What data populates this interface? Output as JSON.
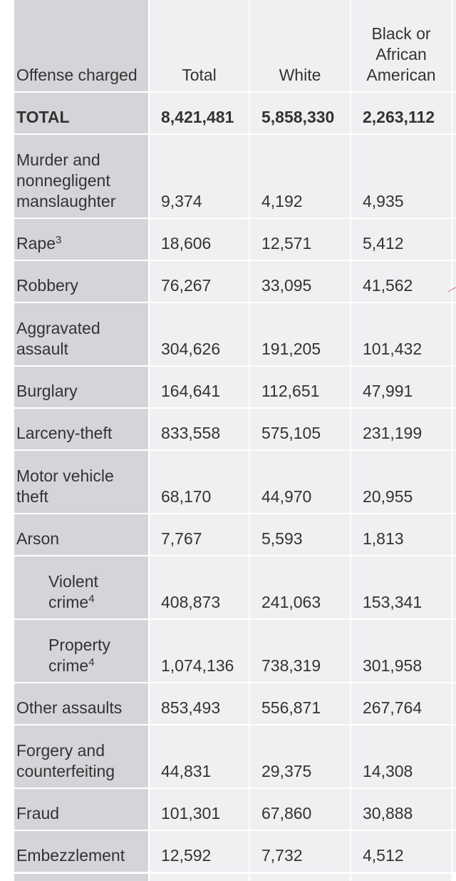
{
  "table": {
    "headers": {
      "offense": "Offense charged",
      "total": "Total",
      "white": "White",
      "black": "Black or African American"
    },
    "rows": [
      {
        "offense": "TOTAL",
        "sup": "",
        "total": "8,421,481",
        "white": "5,858,330",
        "black": "2,263,112"
      },
      {
        "offense": "Murder and nonnegligent manslaughter",
        "sup": "",
        "total": "9,374",
        "white": "4,192",
        "black": "4,935"
      },
      {
        "offense": "Rape",
        "sup": "3",
        "total": "18,606",
        "white": "12,571",
        "black": "5,412"
      },
      {
        "offense": "Robbery",
        "sup": "",
        "total": "76,267",
        "white": "33,095",
        "black": "41,562"
      },
      {
        "offense": "Aggravated assault",
        "sup": "",
        "total": "304,626",
        "white": "191,205",
        "black": "101,432"
      },
      {
        "offense": "Burglary",
        "sup": "",
        "total": "164,641",
        "white": "112,651",
        "black": "47,991"
      },
      {
        "offense": "Larceny-theft",
        "sup": "",
        "total": "833,558",
        "white": "575,105",
        "black": "231,199"
      },
      {
        "offense": "Motor vehicle theft",
        "sup": "",
        "total": "68,170",
        "white": "44,970",
        "black": "20,955"
      },
      {
        "offense": "Arson",
        "sup": "",
        "total": "7,767",
        "white": "5,593",
        "black": "1,813"
      },
      {
        "offense": "Violent crime",
        "sup": "4",
        "total": "408,873",
        "white": "241,063",
        "black": "153,341"
      },
      {
        "offense": "Property crime",
        "sup": "4",
        "total": "1,074,136",
        "white": "738,319",
        "black": "301,958"
      },
      {
        "offense": "Other assaults",
        "sup": "",
        "total": "853,493",
        "white": "556,871",
        "black": "267,764"
      },
      {
        "offense": "Forgery and counterfeiting",
        "sup": "",
        "total": "44,831",
        "white": "29,375",
        "black": "14,308"
      },
      {
        "offense": "Fraud",
        "sup": "",
        "total": "101,301",
        "white": "67,860",
        "black": "30,888"
      },
      {
        "offense": "Embezzlement",
        "sup": "",
        "total": "12,592",
        "white": "7,732",
        "black": "4,512"
      }
    ]
  }
}
